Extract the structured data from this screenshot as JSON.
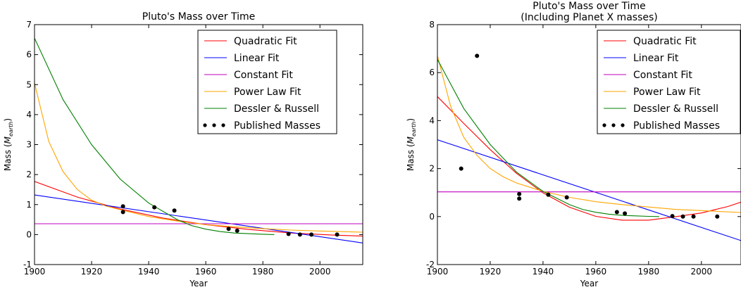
{
  "chart_data": [
    {
      "type": "line",
      "title": "Pluto's Mass over Time",
      "xlabel": "Year",
      "ylabel": "Mass",
      "ylabel_sub": "earth",
      "xlim": [
        1900,
        2015
      ],
      "ylim": [
        -1,
        7
      ],
      "xticks": [
        1900,
        1920,
        1940,
        1960,
        1980,
        2000
      ],
      "yticks": [
        -1,
        0,
        1,
        2,
        3,
        4,
        5,
        6,
        7
      ],
      "grid": false,
      "legend_position": "top-right",
      "series": [
        {
          "name": "Quadratic Fit",
          "color": "#ff0000",
          "x": [
            1900,
            1915,
            1930,
            1945,
            1960,
            1975,
            1990,
            2005,
            2015
          ],
          "y": [
            1.77,
            1.25,
            0.85,
            0.55,
            0.33,
            0.17,
            0.05,
            -0.02,
            -0.05
          ]
        },
        {
          "name": "Linear Fit",
          "color": "#0000ff",
          "x": [
            1900,
            2015
          ],
          "y": [
            1.32,
            -0.28
          ]
        },
        {
          "name": "Constant Fit",
          "color": "#bf00bf",
          "x": [
            1900,
            2015
          ],
          "y": [
            0.36,
            0.36
          ]
        },
        {
          "name": "Power Law Fit",
          "color": "#ffa500",
          "x": [
            1900,
            1905,
            1910,
            1915,
            1920,
            1925,
            1930,
            1940,
            1950,
            1960,
            1970,
            1980,
            1990,
            2000,
            2015
          ],
          "y": [
            5.05,
            3.1,
            2.1,
            1.5,
            1.15,
            0.95,
            0.83,
            0.6,
            0.45,
            0.33,
            0.26,
            0.2,
            0.15,
            0.12,
            0.08
          ]
        },
        {
          "name": "Dessler & Russell",
          "color": "#008000",
          "x": [
            1900,
            1910,
            1920,
            1930,
            1940,
            1950,
            1955,
            1960,
            1965,
            1970,
            1975,
            1980,
            1984
          ],
          "y": [
            6.55,
            4.5,
            3.0,
            1.85,
            1.05,
            0.5,
            0.3,
            0.18,
            0.1,
            0.05,
            0.03,
            0.01,
            0.0
          ]
        }
      ],
      "points": {
        "name": "Published Masses",
        "color": "#000000",
        "x": [
          1931,
          1931,
          1942,
          1949,
          1968,
          1971,
          1989,
          1993,
          1997,
          2006
        ],
        "y": [
          0.94,
          0.75,
          0.91,
          0.8,
          0.19,
          0.13,
          0.02,
          0.0,
          0.0,
          0.0
        ]
      }
    },
    {
      "type": "line",
      "title": "Pluto's Mass over Time",
      "subtitle": "(Including Planet X masses)",
      "xlabel": "Year",
      "ylabel": "Mass",
      "ylabel_sub": "earth",
      "xlim": [
        1900,
        2015
      ],
      "ylim": [
        -2,
        8
      ],
      "xticks": [
        1900,
        1920,
        1940,
        1960,
        1980,
        2000
      ],
      "yticks": [
        -2,
        0,
        2,
        4,
        6,
        8
      ],
      "grid": false,
      "legend_position": "top-right",
      "series": [
        {
          "name": "Quadratic Fit",
          "color": "#ff0000",
          "x": [
            1900,
            1910,
            1920,
            1930,
            1940,
            1950,
            1960,
            1970,
            1980,
            1990,
            2000,
            2010,
            2015
          ],
          "y": [
            5.0,
            3.88,
            2.79,
            1.8,
            0.99,
            0.39,
            0.01,
            -0.15,
            -0.15,
            -0.01,
            0.15,
            0.42,
            0.6
          ]
        },
        {
          "name": "Linear Fit",
          "color": "#0000ff",
          "x": [
            1900,
            2015
          ],
          "y": [
            3.2,
            -1.0
          ]
        },
        {
          "name": "Constant Fit",
          "color": "#bf00bf",
          "x": [
            1900,
            2015
          ],
          "y": [
            1.03,
            1.03
          ]
        },
        {
          "name": "Power Law Fit",
          "color": "#ffa500",
          "x": [
            1900,
            1905,
            1910,
            1915,
            1920,
            1925,
            1930,
            1940,
            1950,
            1960,
            1970,
            1980,
            1990,
            2000,
            2015
          ],
          "y": [
            6.7,
            4.6,
            3.3,
            2.55,
            2.0,
            1.65,
            1.4,
            1.05,
            0.8,
            0.62,
            0.5,
            0.4,
            0.3,
            0.25,
            0.17
          ]
        },
        {
          "name": "Dessler & Russell",
          "color": "#008000",
          "x": [
            1900,
            1910,
            1920,
            1930,
            1940,
            1950,
            1955,
            1960,
            1965,
            1970,
            1975,
            1980,
            1984
          ],
          "y": [
            6.55,
            4.5,
            3.0,
            1.85,
            1.05,
            0.5,
            0.3,
            0.18,
            0.1,
            0.05,
            0.03,
            0.01,
            0.0
          ]
        }
      ],
      "points": {
        "name": "Published Masses",
        "color": "#000000",
        "x": [
          1909,
          1915,
          1931,
          1931,
          1942,
          1949,
          1968,
          1971,
          1989,
          1993,
          1997,
          2006
        ],
        "y": [
          2.0,
          6.7,
          0.94,
          0.75,
          0.91,
          0.8,
          0.19,
          0.13,
          0.02,
          0.0,
          0.0,
          0.0
        ]
      }
    }
  ]
}
